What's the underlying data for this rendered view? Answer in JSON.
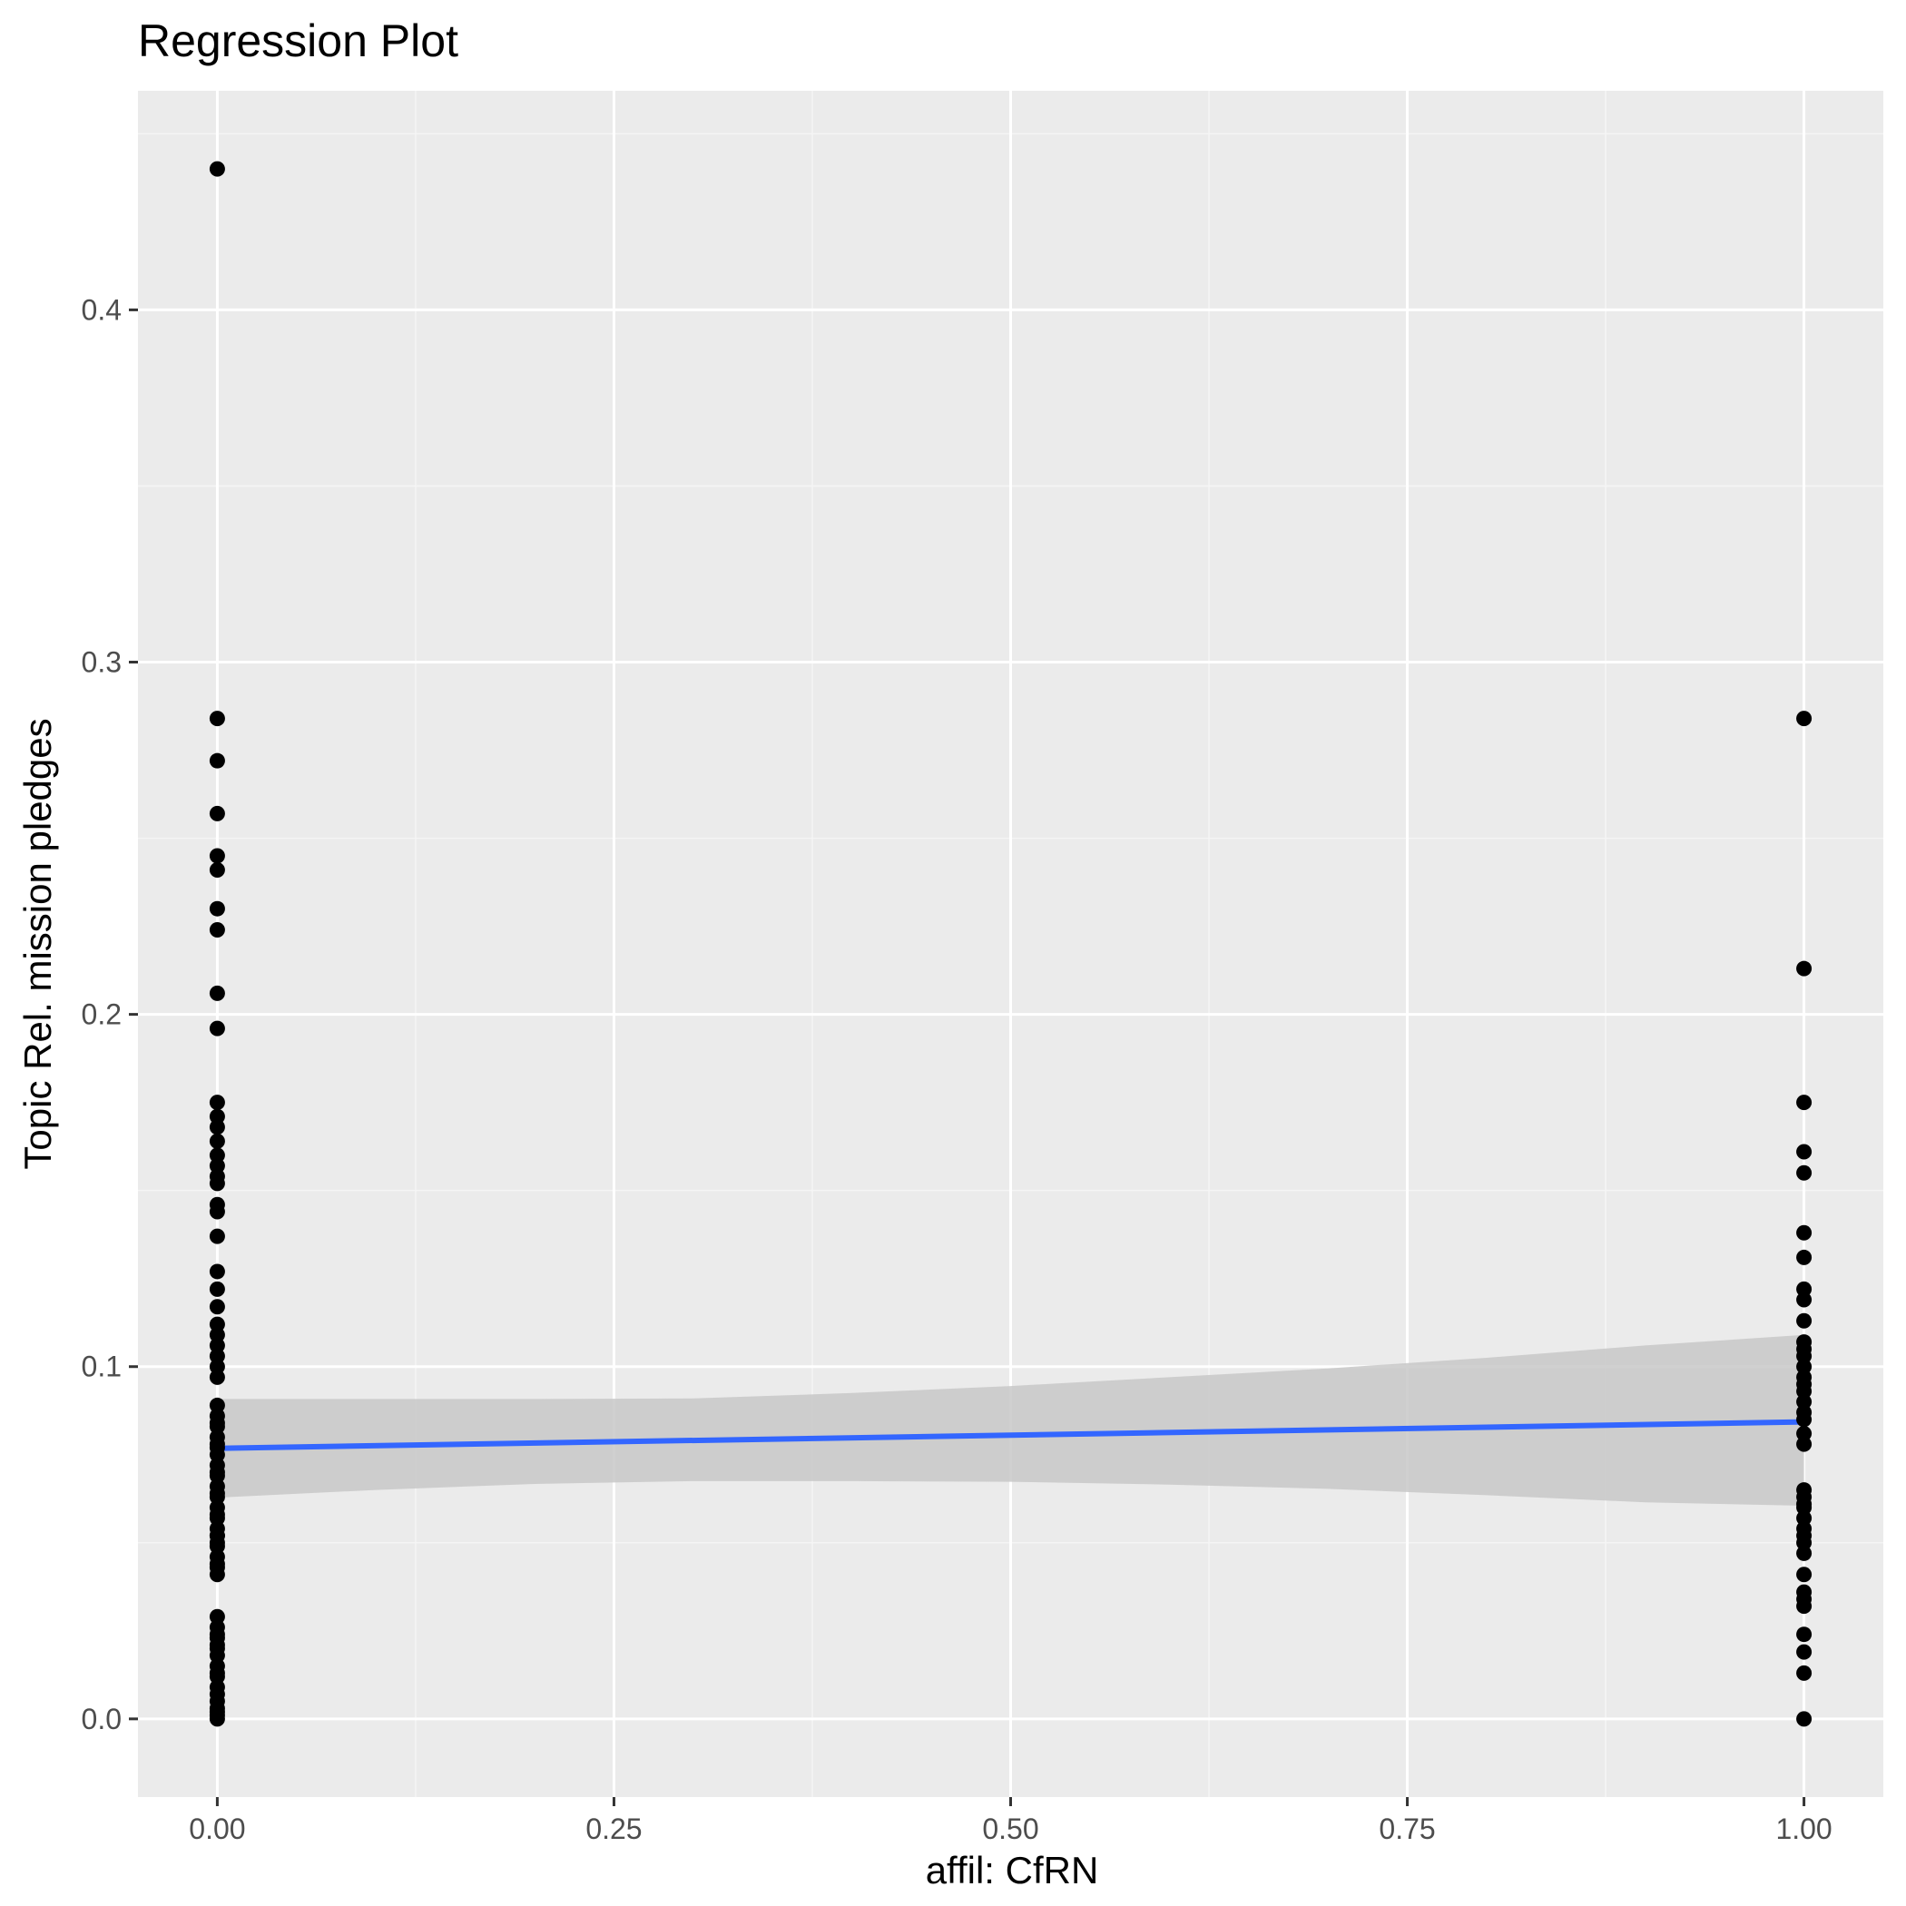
{
  "chart_data": {
    "type": "scatter",
    "title": "Regression Plot",
    "xlabel": "affil: CfRN",
    "ylabel": "Topic Rel. mission pledges",
    "xlim": [
      -0.05,
      1.05
    ],
    "ylim": [
      -0.0222,
      0.4622
    ],
    "x_ticks": [
      0,
      0.25,
      0.5,
      0.75,
      1
    ],
    "x_tick_labels": [
      "0.00",
      "0.25",
      "0.50",
      "0.75",
      "1.00"
    ],
    "y_ticks": [
      0,
      0.1,
      0.2,
      0.3,
      0.4
    ],
    "y_tick_labels": [
      "0.0",
      "0.1",
      "0.2",
      "0.3",
      "0.4"
    ],
    "grid": true,
    "legend": "none",
    "series": [
      {
        "x": [
          0,
          0,
          0,
          0,
          0,
          0,
          0,
          0,
          0,
          0,
          0,
          0,
          0,
          0,
          0,
          0,
          0,
          0,
          0,
          0,
          0,
          0,
          0,
          0,
          0,
          0,
          0,
          0,
          0,
          0,
          0,
          0,
          0,
          0,
          0,
          0,
          0,
          0,
          0,
          0,
          0,
          0,
          0,
          0,
          0,
          0,
          0,
          0,
          0,
          0,
          0,
          0,
          0,
          0,
          0,
          0,
          0,
          0,
          0,
          0,
          0,
          0,
          0,
          0,
          0,
          0,
          0,
          0,
          0,
          0,
          0,
          0,
          0
        ],
        "y": [
          0.44,
          0.284,
          0.272,
          0.257,
          0.245,
          0.241,
          0.23,
          0.224,
          0.206,
          0.196,
          0.175,
          0.171,
          0.168,
          0.164,
          0.16,
          0.157,
          0.154,
          0.152,
          0.146,
          0.144,
          0.137,
          0.127,
          0.122,
          0.117,
          0.112,
          0.109,
          0.106,
          0.103,
          0.1,
          0.097,
          0.089,
          0.086,
          0.083,
          0.08,
          0.077,
          0.075,
          0.072,
          0.069,
          0.066,
          0.063,
          0.06,
          0.057,
          0.054,
          0.052,
          0.049,
          0.046,
          0.043,
          0.041,
          0.029,
          0.026,
          0.023,
          0.02,
          0.018,
          0.015,
          0.012,
          0.009,
          0.007,
          0.005,
          0.003,
          0.002,
          0.001,
          0.0,
          0.084,
          0.078,
          0.07,
          0.064,
          0.058,
          0.052,
          0.05,
          0.044,
          0.024,
          0.021,
          0.013
        ],
        "color": "#000000"
      },
      {
        "x": [
          1,
          1,
          1,
          1,
          1,
          1,
          1,
          1,
          1,
          1,
          1,
          1,
          1,
          1,
          1,
          1,
          1,
          1,
          1,
          1,
          1,
          1,
          1,
          1,
          1,
          1,
          1,
          1,
          1,
          1,
          1,
          1,
          1,
          1,
          1,
          1,
          1,
          1,
          1
        ],
        "y": [
          0.284,
          0.213,
          0.175,
          0.161,
          0.155,
          0.138,
          0.131,
          0.122,
          0.119,
          0.113,
          0.107,
          0.103,
          0.1,
          0.097,
          0.093,
          0.09,
          0.087,
          0.081,
          0.078,
          0.065,
          0.063,
          0.06,
          0.057,
          0.054,
          0.052,
          0.05,
          0.047,
          0.041,
          0.036,
          0.034,
          0.032,
          0.024,
          0.019,
          0.013,
          0.0,
          0.105,
          0.095,
          0.085,
          0.061
        ],
        "color": "#000000"
      }
    ],
    "regression_line": {
      "x": [
        0,
        1
      ],
      "y": [
        0.0768,
        0.0843
      ],
      "color": "#3366ff"
    },
    "confidence_band": {
      "x": [
        0,
        0.1,
        0.2,
        0.3,
        0.4,
        0.5,
        0.6,
        0.7,
        0.8,
        0.9,
        1
      ],
      "lower": [
        0.0628,
        0.065,
        0.0667,
        0.0675,
        0.0675,
        0.0673,
        0.0665,
        0.0653,
        0.0635,
        0.0615,
        0.0605
      ],
      "upper": [
        0.0908,
        0.0908,
        0.0908,
        0.091,
        0.0925,
        0.0945,
        0.097,
        0.0995,
        0.1025,
        0.106,
        0.109
      ],
      "color": "#c8c8c8"
    },
    "colors": {
      "panel_background": "#ebebeb",
      "grid_major": "#ffffff",
      "grid_minor": "#f5f5f5",
      "point": "#000000",
      "line": "#3366ff",
      "band": "#c8c8c8"
    }
  }
}
